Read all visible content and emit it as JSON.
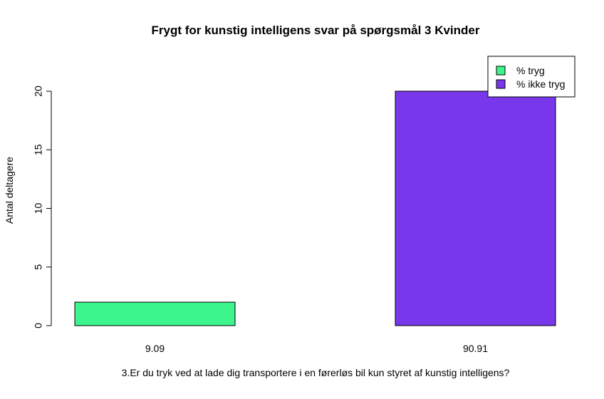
{
  "chart_data": {
    "type": "bar",
    "title": "Frygt for kunstig intelligens svar på spørgsmål 3 Kvinder",
    "xlabel": "3.Er du tryk ved at lade dig transportere i en førerløs bil kun styret af kunstig intelligens?",
    "ylabel": "Antal deltagere",
    "categories": [
      "9.09",
      "90.91"
    ],
    "values": [
      2,
      20
    ],
    "colors": [
      "#3CF58C",
      "#7837EA"
    ],
    "ylim": [
      0,
      20
    ],
    "yticks": [
      "0",
      "5",
      "10",
      "15",
      "20"
    ],
    "grid": false,
    "legend": {
      "position": "top-right",
      "entries": [
        {
          "label": "% tryg",
          "color": "#3CF58C"
        },
        {
          "label": "% ikke tryg",
          "color": "#7837EA"
        }
      ]
    }
  }
}
